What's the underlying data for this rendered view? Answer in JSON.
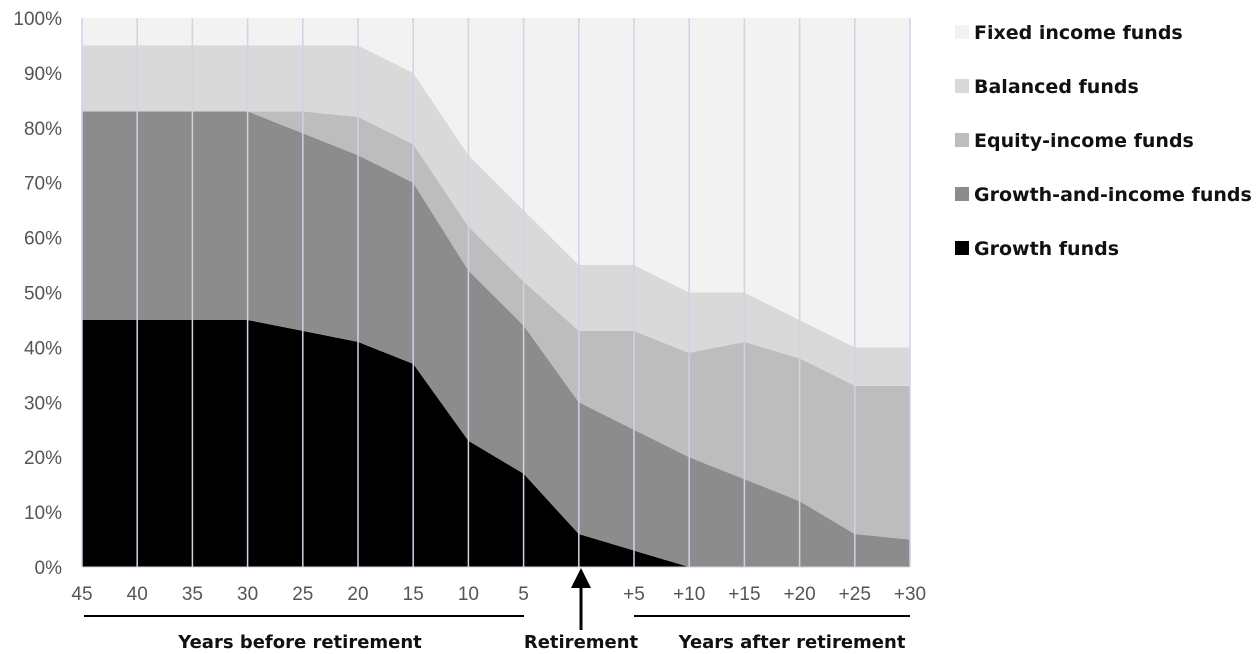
{
  "chart_data": {
    "type": "area",
    "stacked": true,
    "categories": [
      "45",
      "40",
      "35",
      "30",
      "25",
      "20",
      "15",
      "10",
      "5",
      "",
      "+5",
      "+10",
      "+15",
      "+20",
      "+25",
      "+30"
    ],
    "series": [
      {
        "name": "Growth funds",
        "color": "#000000",
        "values": [
          45,
          45,
          45,
          45,
          43,
          41,
          37,
          23,
          17,
          6,
          3,
          0,
          0,
          0,
          0,
          0
        ]
      },
      {
        "name": "Growth-and-income funds",
        "color": "#8c8c8c",
        "values": [
          38,
          38,
          38,
          38,
          36,
          34,
          33,
          31,
          27,
          24,
          22,
          20,
          16,
          12,
          6,
          5
        ]
      },
      {
        "name": "Equity-income funds",
        "color": "#bdbdbd",
        "values": [
          0,
          0,
          0,
          0,
          4,
          7,
          7,
          8,
          8,
          13,
          18,
          19,
          25,
          26,
          27,
          28
        ]
      },
      {
        "name": "Balanced funds",
        "color": "#d9d9d9",
        "values": [
          12,
          12,
          12,
          12,
          12,
          13,
          13,
          13,
          13,
          12,
          12,
          11,
          9,
          7,
          7,
          7
        ]
      },
      {
        "name": "Fixed income funds",
        "color": "#f2f2f2",
        "values": [
          5,
          5,
          5,
          5,
          5,
          5,
          10,
          25,
          35,
          45,
          45,
          50,
          50,
          55,
          60,
          60
        ]
      }
    ],
    "y_ticks": [
      "0%",
      "10%",
      "20%",
      "30%",
      "40%",
      "50%",
      "60%",
      "70%",
      "80%",
      "90%",
      "100%"
    ],
    "ylim": [
      0,
      100
    ],
    "legend_position": "right",
    "legend_order": [
      "Fixed income funds",
      "Balanced funds",
      "Equity-income funds",
      "Growth-and-income funds",
      "Growth funds"
    ],
    "grid": "vertical",
    "annotations": {
      "before": "Years before retirement",
      "retirement": "Retirement",
      "after": "Years after retirement"
    }
  }
}
